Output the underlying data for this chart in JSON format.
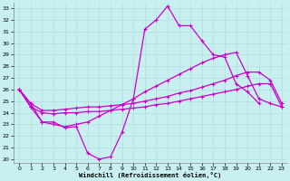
{
  "xlabel": "Windchill (Refroidissement éolien,°C)",
  "background_color": "#c8f0f0",
  "grid_color": "#b0dede",
  "line_color": "#cc00cc",
  "xlim": [
    -0.5,
    23.5
  ],
  "ylim": [
    19.7,
    33.5
  ],
  "xticks": [
    0,
    1,
    2,
    3,
    4,
    5,
    6,
    7,
    8,
    9,
    10,
    11,
    12,
    13,
    14,
    15,
    16,
    17,
    18,
    19,
    20,
    21,
    22,
    23
  ],
  "yticks": [
    20,
    21,
    22,
    23,
    24,
    25,
    26,
    27,
    28,
    29,
    30,
    31,
    32,
    33
  ],
  "s1_x": [
    0,
    1,
    2,
    3,
    4,
    5,
    6,
    7,
    8,
    9,
    10,
    11,
    12,
    13,
    14,
    15,
    16,
    17,
    18,
    19,
    20,
    21
  ],
  "s1_y": [
    26.0,
    24.8,
    23.2,
    23.2,
    22.7,
    22.8,
    20.5,
    20.0,
    20.2,
    22.3,
    25.2,
    31.2,
    32.0,
    33.2,
    31.5,
    31.5,
    30.2,
    29.0,
    28.8,
    26.5,
    25.8,
    24.8
  ],
  "s2_x": [
    0,
    1,
    2,
    3,
    4,
    5,
    6,
    7,
    8,
    9,
    10,
    11,
    12,
    13,
    14,
    15,
    16,
    17,
    18,
    19,
    20,
    21,
    22,
    23
  ],
  "s2_y": [
    26.0,
    24.8,
    24.2,
    24.2,
    24.3,
    24.4,
    24.5,
    24.5,
    24.6,
    24.7,
    24.8,
    25.0,
    25.2,
    25.4,
    25.7,
    25.9,
    26.2,
    26.5,
    26.8,
    27.2,
    27.5,
    27.5,
    26.8,
    24.8
  ],
  "s3_x": [
    0,
    1,
    2,
    3,
    4,
    5,
    6,
    7,
    8,
    9,
    10,
    11,
    12,
    13,
    14,
    15,
    16,
    17,
    18,
    19,
    20,
    21,
    22,
    23
  ],
  "s3_y": [
    26.0,
    24.5,
    24.0,
    23.9,
    24.0,
    24.0,
    24.1,
    24.1,
    24.2,
    24.3,
    24.4,
    24.5,
    24.7,
    24.8,
    25.0,
    25.2,
    25.4,
    25.6,
    25.8,
    26.0,
    26.3,
    26.5,
    26.5,
    24.5
  ],
  "s4_x": [
    0,
    1,
    2,
    3,
    4,
    5,
    6,
    7,
    8,
    9,
    10,
    11,
    12,
    13,
    14,
    15,
    16,
    17,
    18,
    19,
    20,
    21,
    22,
    23
  ],
  "s4_y": [
    26.0,
    24.5,
    23.2,
    23.0,
    22.8,
    23.0,
    23.2,
    23.7,
    24.2,
    24.7,
    25.2,
    25.8,
    26.3,
    26.8,
    27.3,
    27.8,
    28.3,
    28.7,
    29.0,
    29.2,
    27.2,
    25.2,
    24.8,
    24.5
  ],
  "marker": "+",
  "markersize": 3,
  "markeredgewidth": 0.8,
  "linewidth": 0.9
}
